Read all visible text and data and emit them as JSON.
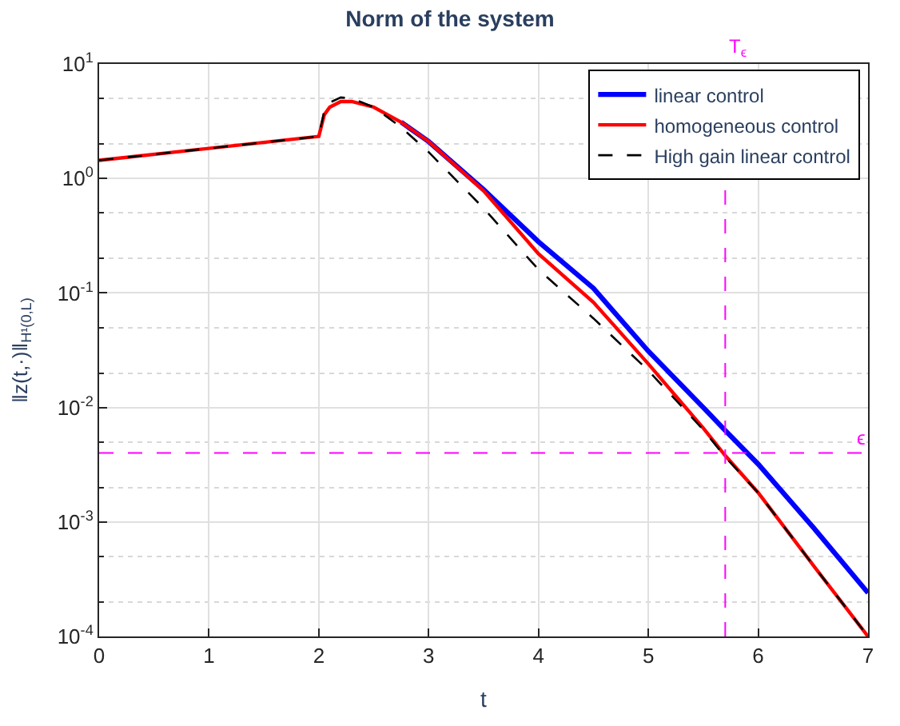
{
  "chart_data": {
    "type": "line",
    "title": "Norm of the system",
    "xlabel": "t",
    "ylabel": "‖z(t,·)‖$_{H¹(0,L)}$",
    "x": [
      0,
      2,
      2.05,
      2.1,
      2.2,
      2.3,
      2.5,
      2.75,
      3,
      3.5,
      4,
      4.5,
      5,
      5.5,
      5.7,
      6,
      6.5,
      7
    ],
    "series": [
      {
        "name": "linear control",
        "color": "#0000ff",
        "line_style": "solid",
        "values": [
          null,
          null,
          null,
          null,
          null,
          null,
          null,
          3.1,
          2.1,
          0.8,
          0.28,
          0.11,
          0.031,
          0.01,
          0.0063,
          0.0032,
          0.0009,
          0.00024
        ]
      },
      {
        "name": "homogeneous control",
        "color": "#ff0000",
        "line_style": "solid",
        "values": [
          1.44,
          2.33,
          3.6,
          4.2,
          4.7,
          4.7,
          4.2,
          3.1,
          2.1,
          0.78,
          0.22,
          0.083,
          0.024,
          0.0066,
          0.0038,
          0.0018,
          0.00042,
          0.0001
        ]
      },
      {
        "name": "High gain linear control",
        "color": "#000000",
        "line_style": "dashed",
        "values": [
          1.44,
          2.33,
          3.9,
          4.6,
          5.1,
          5.0,
          4.2,
          2.8,
          1.7,
          0.55,
          0.16,
          0.06,
          0.021,
          0.0064,
          0.0037,
          0.0018,
          0.00042,
          0.0001
        ]
      }
    ],
    "log": "y",
    "xlim": [
      0,
      7
    ],
    "xticks": [
      0,
      1,
      2,
      3,
      4,
      5,
      6,
      7
    ],
    "ylim": [
      0.0001,
      10
    ],
    "yticks": [
      {
        "value": 0.0001,
        "label": "10$^{-4}$"
      },
      {
        "value": 0.001,
        "label": "10$^{-3}$"
      },
      {
        "value": 0.01,
        "label": "10$^{-2}$"
      },
      {
        "value": 0.1,
        "label": "10$^{-1}$"
      },
      {
        "value": 1,
        "label": "10$^{0}$"
      },
      {
        "value": 10,
        "label": "10$^{1}$"
      }
    ],
    "grid": true,
    "legend": "top right",
    "marker": "none",
    "ref_lines": [
      {
        "axis": "y",
        "value": 0.004,
        "label": "ϵ",
        "color": "#ff00ff",
        "line_style": "dashed"
      },
      {
        "axis": "x",
        "value": 5.7,
        "label": "T$_{ϵ}$",
        "color": "#ff00ff",
        "line_style": "dashed"
      }
    ]
  }
}
